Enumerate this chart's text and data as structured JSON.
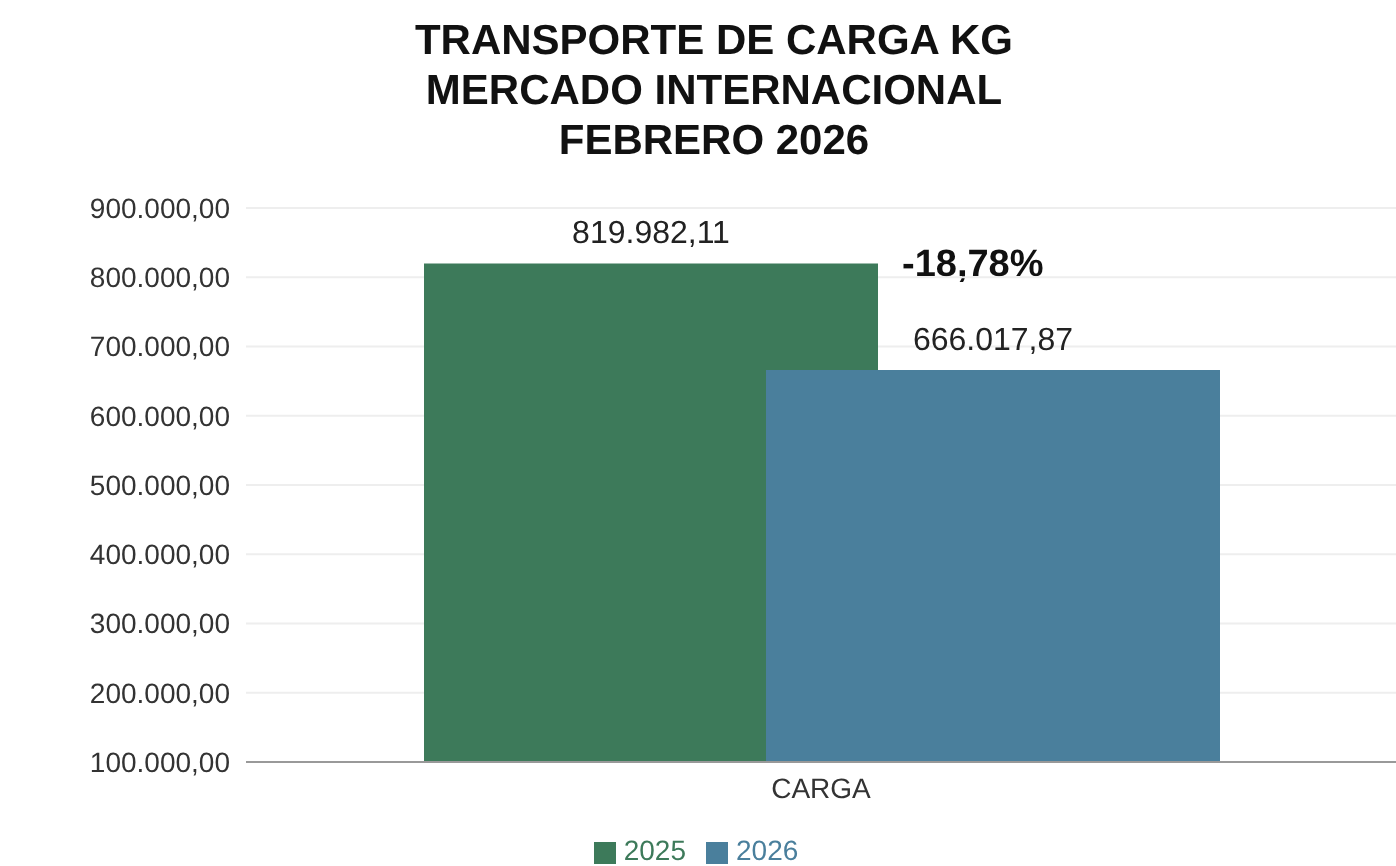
{
  "chart_data": {
    "type": "bar",
    "title": "TRANSPORTE DE CARGA KG\nMERCADO INTERNACIONAL\nFEBRERO 2026",
    "categories": [
      "CARGA"
    ],
    "series": [
      {
        "name": "2025",
        "color": "#3d7a5a",
        "values": [
          819982.11
        ],
        "value_labels": [
          "819.982,11"
        ]
      },
      {
        "name": "2026",
        "color": "#4a7f9c",
        "values": [
          666017.87
        ],
        "value_labels": [
          "666.017,87"
        ]
      }
    ],
    "ylim": [
      100000,
      900000
    ],
    "yticks": [
      {
        "value": 100000,
        "label": "100.000,00"
      },
      {
        "value": 200000,
        "label": "200.000,00"
      },
      {
        "value": 300000,
        "label": "300.000,00"
      },
      {
        "value": 400000,
        "label": "400.000,00"
      },
      {
        "value": 500000,
        "label": "500.000,00"
      },
      {
        "value": 600000,
        "label": "600.000,00"
      },
      {
        "value": 700000,
        "label": "700.000,00"
      },
      {
        "value": 800000,
        "label": "800.000,00"
      },
      {
        "value": 900000,
        "label": "900.000,00"
      }
    ],
    "grid": "y",
    "legend": "bottom",
    "annotations": [
      "-18,78%"
    ]
  }
}
